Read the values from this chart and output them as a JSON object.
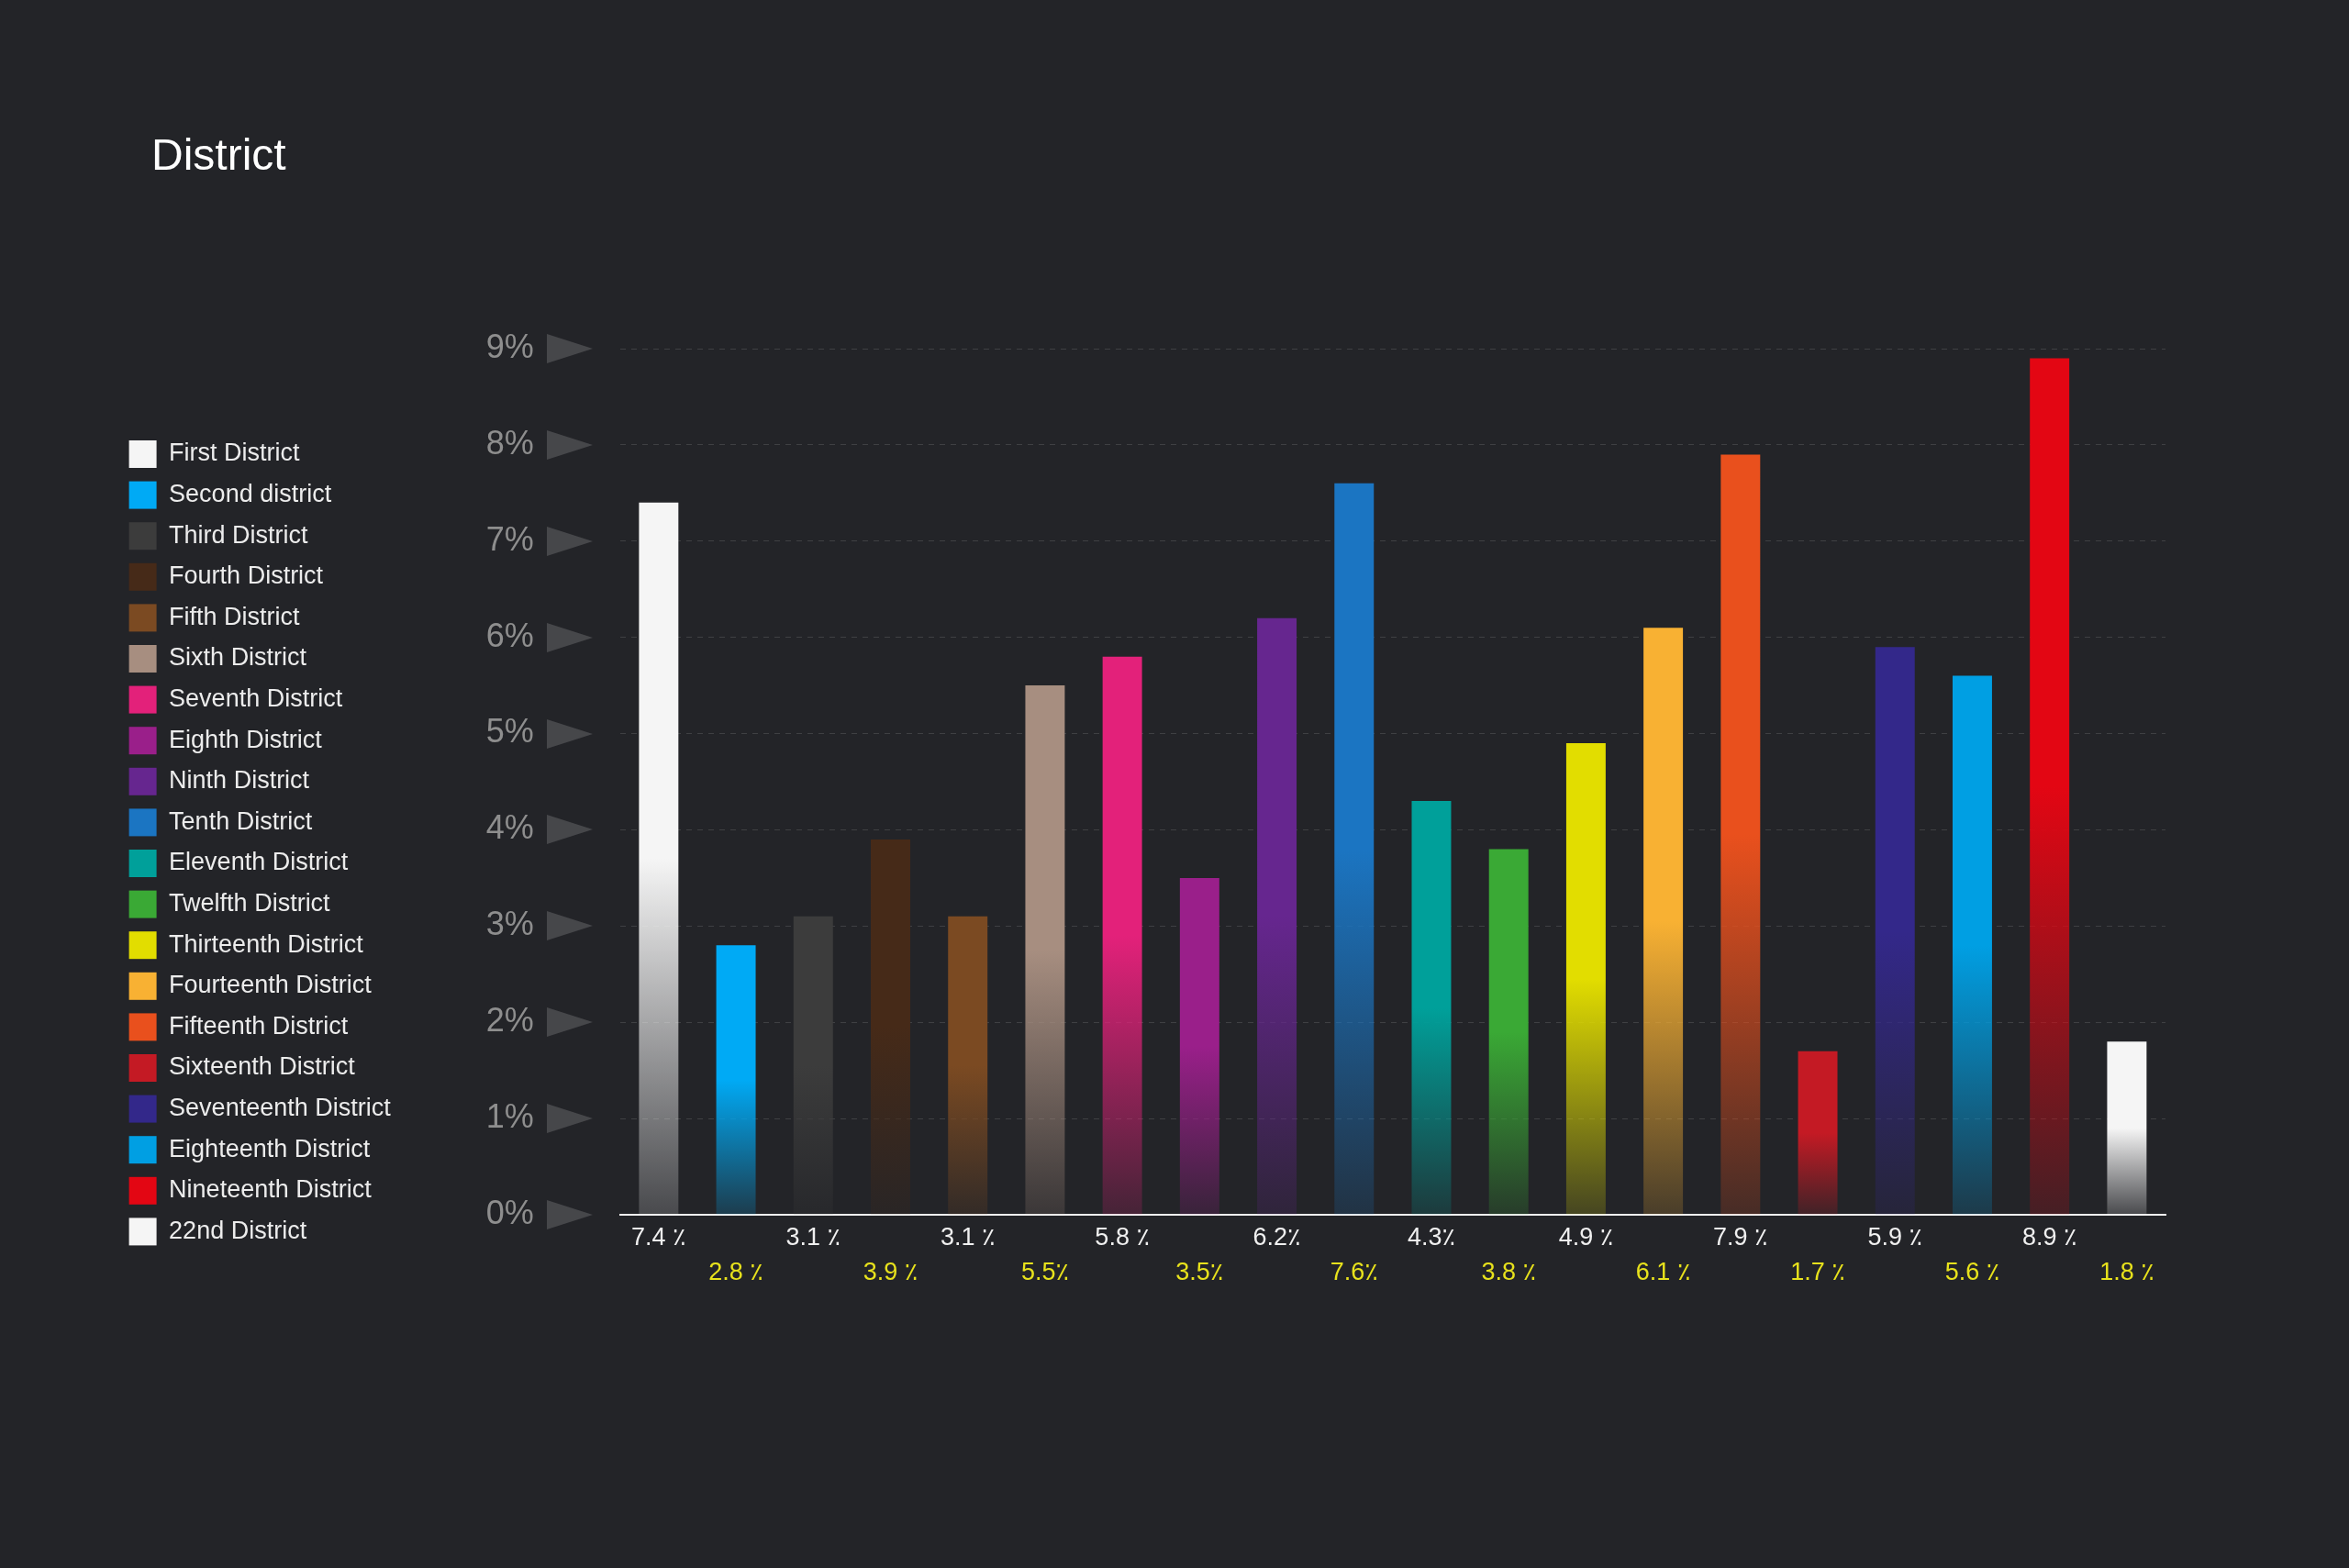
{
  "chart_data": {
    "type": "bar",
    "title": "District",
    "categories": [
      null,
      null,
      null,
      null,
      null,
      null,
      null,
      null,
      null,
      null,
      null,
      null,
      null,
      null,
      null,
      null,
      null,
      null,
      null,
      null
    ],
    "series": [
      {
        "name": "First District",
        "color": "#f5f5f5",
        "values": [
          7.4,
          null,
          null,
          null,
          null,
          null,
          null,
          null,
          null,
          null,
          null,
          null,
          null,
          null,
          null,
          null,
          null,
          null,
          null,
          null
        ],
        "value_labels": [
          "7.4 ٪",
          null,
          null,
          null,
          null,
          null,
          null,
          null,
          null,
          null,
          null,
          null,
          null,
          null,
          null,
          null,
          null,
          null,
          null,
          null
        ]
      },
      {
        "name": "Second district",
        "color": "#00aaf5",
        "values": [
          null,
          2.8,
          null,
          null,
          null,
          null,
          null,
          null,
          null,
          null,
          null,
          null,
          null,
          null,
          null,
          null,
          null,
          null,
          null,
          null
        ],
        "value_labels": [
          null,
          "2.8 ٪",
          null,
          null,
          null,
          null,
          null,
          null,
          null,
          null,
          null,
          null,
          null,
          null,
          null,
          null,
          null,
          null,
          null,
          null
        ]
      },
      {
        "name": "Third District",
        "color": "#3c3c3c",
        "values": [
          null,
          null,
          3.1,
          null,
          null,
          null,
          null,
          null,
          null,
          null,
          null,
          null,
          null,
          null,
          null,
          null,
          null,
          null,
          null,
          null
        ],
        "value_labels": [
          null,
          null,
          "3.1 ٪",
          null,
          null,
          null,
          null,
          null,
          null,
          null,
          null,
          null,
          null,
          null,
          null,
          null,
          null,
          null,
          null,
          null
        ]
      },
      {
        "name": "Fourth District",
        "color": "#462a18",
        "values": [
          null,
          null,
          null,
          3.9,
          null,
          null,
          null,
          null,
          null,
          null,
          null,
          null,
          null,
          null,
          null,
          null,
          null,
          null,
          null,
          null
        ],
        "value_labels": [
          null,
          null,
          null,
          "3.9 ٪",
          null,
          null,
          null,
          null,
          null,
          null,
          null,
          null,
          null,
          null,
          null,
          null,
          null,
          null,
          null,
          null
        ]
      },
      {
        "name": "Fifth District",
        "color": "#7b4a22",
        "values": [
          null,
          null,
          null,
          null,
          3.1,
          null,
          null,
          null,
          null,
          null,
          null,
          null,
          null,
          null,
          null,
          null,
          null,
          null,
          null,
          null
        ],
        "value_labels": [
          null,
          null,
          null,
          null,
          "3.1 ٪",
          null,
          null,
          null,
          null,
          null,
          null,
          null,
          null,
          null,
          null,
          null,
          null,
          null,
          null,
          null
        ]
      },
      {
        "name": "Sixth District",
        "color": "#a78e80",
        "values": [
          null,
          null,
          null,
          null,
          null,
          5.5,
          null,
          null,
          null,
          null,
          null,
          null,
          null,
          null,
          null,
          null,
          null,
          null,
          null,
          null
        ],
        "value_labels": [
          null,
          null,
          null,
          null,
          null,
          "5.5٪",
          null,
          null,
          null,
          null,
          null,
          null,
          null,
          null,
          null,
          null,
          null,
          null,
          null,
          null
        ]
      },
      {
        "name": "Seventh District",
        "color": "#e3217a",
        "values": [
          null,
          null,
          null,
          null,
          null,
          null,
          5.8,
          null,
          null,
          null,
          null,
          null,
          null,
          null,
          null,
          null,
          null,
          null,
          null,
          null
        ],
        "value_labels": [
          null,
          null,
          null,
          null,
          null,
          null,
          "5.8 ٪",
          null,
          null,
          null,
          null,
          null,
          null,
          null,
          null,
          null,
          null,
          null,
          null,
          null
        ]
      },
      {
        "name": "Eighth District",
        "color": "#9a1f8a",
        "values": [
          null,
          null,
          null,
          null,
          null,
          null,
          null,
          3.5,
          null,
          null,
          null,
          null,
          null,
          null,
          null,
          null,
          null,
          null,
          null,
          null
        ],
        "value_labels": [
          null,
          null,
          null,
          null,
          null,
          null,
          null,
          "3.5٪",
          null,
          null,
          null,
          null,
          null,
          null,
          null,
          null,
          null,
          null,
          null,
          null
        ]
      },
      {
        "name": "Ninth District",
        "color": "#66268f",
        "values": [
          null,
          null,
          null,
          null,
          null,
          null,
          null,
          null,
          6.2,
          null,
          null,
          null,
          null,
          null,
          null,
          null,
          null,
          null,
          null,
          null
        ],
        "value_labels": [
          null,
          null,
          null,
          null,
          null,
          null,
          null,
          null,
          "6.2٪",
          null,
          null,
          null,
          null,
          null,
          null,
          null,
          null,
          null,
          null,
          null
        ]
      },
      {
        "name": "Tenth District",
        "color": "#1b75c2",
        "values": [
          null,
          null,
          null,
          null,
          null,
          null,
          null,
          null,
          null,
          7.6,
          null,
          null,
          null,
          null,
          null,
          null,
          null,
          null,
          null,
          null
        ],
        "value_labels": [
          null,
          null,
          null,
          null,
          null,
          null,
          null,
          null,
          null,
          "7.6٪",
          null,
          null,
          null,
          null,
          null,
          null,
          null,
          null,
          null,
          null
        ]
      },
      {
        "name": "Eleventh District",
        "color": "#00a09a",
        "values": [
          null,
          null,
          null,
          null,
          null,
          null,
          null,
          null,
          null,
          null,
          4.3,
          null,
          null,
          null,
          null,
          null,
          null,
          null,
          null,
          null
        ],
        "value_labels": [
          null,
          null,
          null,
          null,
          null,
          null,
          null,
          null,
          null,
          null,
          "4.3٪",
          null,
          null,
          null,
          null,
          null,
          null,
          null,
          null,
          null
        ]
      },
      {
        "name": "Twelfth District",
        "color": "#3aa935",
        "values": [
          null,
          null,
          null,
          null,
          null,
          null,
          null,
          null,
          null,
          null,
          null,
          3.8,
          null,
          null,
          null,
          null,
          null,
          null,
          null,
          null
        ],
        "value_labels": [
          null,
          null,
          null,
          null,
          null,
          null,
          null,
          null,
          null,
          null,
          null,
          "3.8 ٪",
          null,
          null,
          null,
          null,
          null,
          null,
          null,
          null
        ]
      },
      {
        "name": "Thirteenth District",
        "color": "#e2dd00",
        "values": [
          null,
          null,
          null,
          null,
          null,
          null,
          null,
          null,
          null,
          null,
          null,
          null,
          4.9,
          null,
          null,
          null,
          null,
          null,
          null,
          null
        ],
        "value_labels": [
          null,
          null,
          null,
          null,
          null,
          null,
          null,
          null,
          null,
          null,
          null,
          null,
          "4.9 ٪",
          null,
          null,
          null,
          null,
          null,
          null,
          null
        ]
      },
      {
        "name": "Fourteenth District",
        "color": "#f8b133",
        "values": [
          null,
          null,
          null,
          null,
          null,
          null,
          null,
          null,
          null,
          null,
          null,
          null,
          null,
          6.1,
          null,
          null,
          null,
          null,
          null,
          null
        ],
        "value_labels": [
          null,
          null,
          null,
          null,
          null,
          null,
          null,
          null,
          null,
          null,
          null,
          null,
          null,
          "6.1 ٪",
          null,
          null,
          null,
          null,
          null,
          null
        ]
      },
      {
        "name": "Fifteenth District",
        "color": "#e9501d",
        "values": [
          null,
          null,
          null,
          null,
          null,
          null,
          null,
          null,
          null,
          null,
          null,
          null,
          null,
          null,
          7.9,
          null,
          null,
          null,
          null,
          null
        ],
        "value_labels": [
          null,
          null,
          null,
          null,
          null,
          null,
          null,
          null,
          null,
          null,
          null,
          null,
          null,
          null,
          "7.9 ٪",
          null,
          null,
          null,
          null,
          null
        ]
      },
      {
        "name": "Sixteenth District",
        "color": "#c41a24",
        "values": [
          null,
          null,
          null,
          null,
          null,
          null,
          null,
          null,
          null,
          null,
          null,
          null,
          null,
          null,
          null,
          1.7,
          null,
          null,
          null,
          null
        ],
        "value_labels": [
          null,
          null,
          null,
          null,
          null,
          null,
          null,
          null,
          null,
          null,
          null,
          null,
          null,
          null,
          null,
          "1.7 ٪",
          null,
          null,
          null,
          null
        ]
      },
      {
        "name": "Seventeenth District",
        "color": "#33288a",
        "values": [
          null,
          null,
          null,
          null,
          null,
          null,
          null,
          null,
          null,
          null,
          null,
          null,
          null,
          null,
          null,
          null,
          5.9,
          null,
          null,
          null
        ],
        "value_labels": [
          null,
          null,
          null,
          null,
          null,
          null,
          null,
          null,
          null,
          null,
          null,
          null,
          null,
          null,
          null,
          null,
          "5.9 ٪",
          null,
          null,
          null
        ]
      },
      {
        "name": "Eighteenth District",
        "color": "#009fe3",
        "values": [
          null,
          null,
          null,
          null,
          null,
          null,
          null,
          null,
          null,
          null,
          null,
          null,
          null,
          null,
          null,
          null,
          null,
          5.6,
          null,
          null
        ],
        "value_labels": [
          null,
          null,
          null,
          null,
          null,
          null,
          null,
          null,
          null,
          null,
          null,
          null,
          null,
          null,
          null,
          null,
          null,
          "5.6 ٪",
          null,
          null
        ]
      },
      {
        "name": "Nineteenth District",
        "color": "#e30613",
        "values": [
          null,
          null,
          null,
          null,
          null,
          null,
          null,
          null,
          null,
          null,
          null,
          null,
          null,
          null,
          null,
          null,
          null,
          null,
          8.9,
          null
        ],
        "value_labels": [
          null,
          null,
          null,
          null,
          null,
          null,
          null,
          null,
          null,
          null,
          null,
          null,
          null,
          null,
          null,
          null,
          null,
          null,
          "8.9 ٪",
          null
        ]
      },
      {
        "name": "22nd District",
        "color": "#f5f5f5",
        "values": [
          null,
          null,
          null,
          null,
          null,
          null,
          null,
          null,
          null,
          null,
          null,
          null,
          null,
          null,
          null,
          null,
          null,
          null,
          null,
          1.8
        ],
        "value_labels": [
          null,
          null,
          null,
          null,
          null,
          null,
          null,
          null,
          null,
          null,
          null,
          null,
          null,
          null,
          null,
          null,
          null,
          null,
          null,
          "1.8 ٪"
        ]
      }
    ],
    "ylim": [
      0,
      9
    ],
    "yticks": [
      {
        "value": 0,
        "label": "0%"
      },
      {
        "value": 1,
        "label": "1%"
      },
      {
        "value": 2,
        "label": "2%"
      },
      {
        "value": 3,
        "label": "3%"
      },
      {
        "value": 4,
        "label": "4%"
      },
      {
        "value": 5,
        "label": "5%"
      },
      {
        "value": 6,
        "label": "6%"
      },
      {
        "value": 7,
        "label": "7%"
      },
      {
        "value": 8,
        "label": "8%"
      },
      {
        "value": 9,
        "label": "9%"
      }
    ],
    "grid": "y",
    "legend": "left",
    "tick_labels": "y"
  }
}
